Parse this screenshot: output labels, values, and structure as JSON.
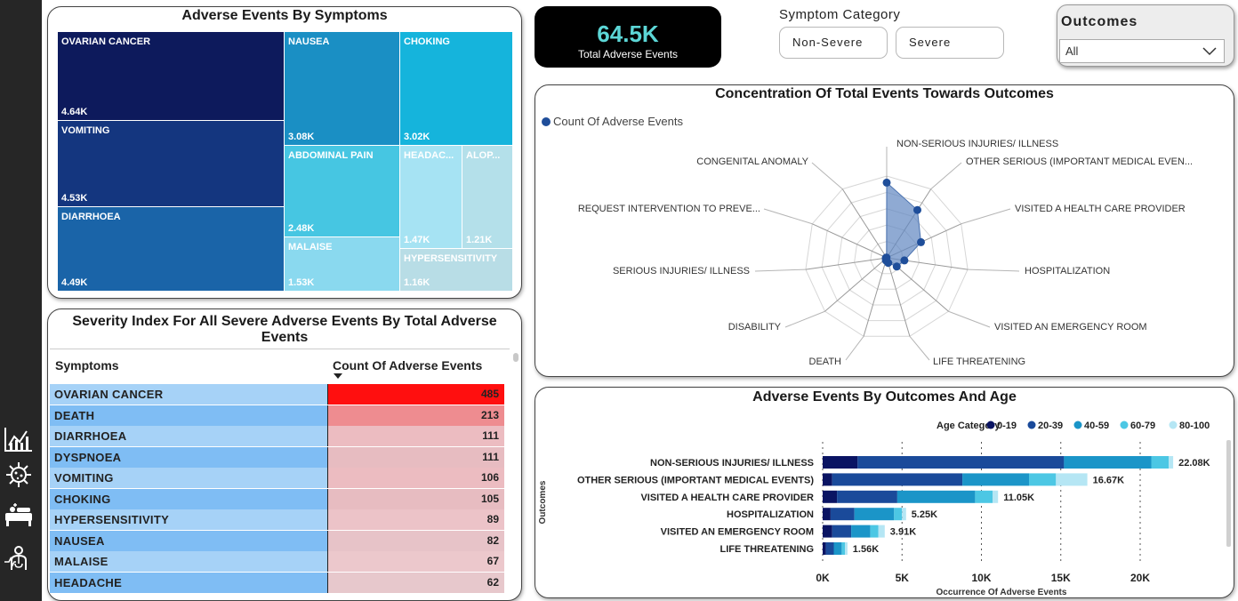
{
  "kpi": {
    "value": "64.5K",
    "label": "Total Adverse Events"
  },
  "symptom_category": {
    "title": "Symptom Category",
    "options": [
      "Non-Severe",
      "Severe"
    ]
  },
  "outcomes_slicer": {
    "title": "Outcomes",
    "selected": "All"
  },
  "treemap": {
    "title": "Adverse Events By Symptoms",
    "cells": [
      {
        "label": "OVARIAN CANCER",
        "value": "4.64K",
        "color": "#0d1a5c"
      },
      {
        "label": "VOMITING",
        "value": "4.53K",
        "color": "#14367f"
      },
      {
        "label": "DIARRHOEA",
        "value": "4.49K",
        "color": "#1a64a8"
      },
      {
        "label": "NAUSEA",
        "value": "3.08K",
        "color": "#1a8fc4"
      },
      {
        "label": "CHOKING",
        "value": "3.02K",
        "color": "#15b4dc"
      },
      {
        "label": "ABDOMINAL PAIN",
        "value": "2.48K",
        "color": "#46c6e2"
      },
      {
        "label": "MALAISE",
        "value": "1.53K",
        "color": "#8ad9ef"
      },
      {
        "label": "HEADAC...",
        "value": "1.47K",
        "color": "#a6e3f3"
      },
      {
        "label": "ALOP...",
        "value": "1.21K",
        "color": "#b4e0ea"
      },
      {
        "label": "HYPERSENSITIVITY",
        "value": "1.16K",
        "color": "#b8dde6"
      }
    ]
  },
  "table": {
    "title": "Severity Index For All Severe Adverse Events By Total Adverse Events",
    "col1": "Symptoms",
    "col2": "Count Of Adverse Events",
    "rows": [
      {
        "symptom": "OVARIAN CANCER",
        "count": "485",
        "color": "#ff0f0f",
        "row_color": "#a6d2f7"
      },
      {
        "symptom": "DEATH",
        "count": "213",
        "color": "#ee8c90",
        "row_color": "#7fbdf4"
      },
      {
        "symptom": "DIARRHOEA",
        "count": "111",
        "color": "#ecbcc1",
        "row_color": "#a6d2f7"
      },
      {
        "symptom": "DYSPNOEA",
        "count": "111",
        "color": "#e7bcc1",
        "row_color": "#7fbdf4"
      },
      {
        "symptom": "VOMITING",
        "count": "106",
        "color": "#ecbcc1",
        "row_color": "#a6d2f7"
      },
      {
        "symptom": "CHOKING",
        "count": "105",
        "color": "#e7bcc1",
        "row_color": "#7fbdf4"
      },
      {
        "symptom": "HYPERSENSITIVITY",
        "count": "89",
        "color": "#ecc3c8",
        "row_color": "#a6d2f7"
      },
      {
        "symptom": "NAUSEA",
        "count": "82",
        "color": "#e7c3c8",
        "row_color": "#7fbdf4"
      },
      {
        "symptom": "MALAISE",
        "count": "67",
        "color": "#ecc8cc",
        "row_color": "#a6d2f7"
      },
      {
        "symptom": "HEADACHE",
        "count": "62",
        "color": "#e7c8cc",
        "row_color": "#7fbdf4"
      }
    ]
  },
  "radar": {
    "title": "Concentration Of Total Events Towards Outcomes",
    "legend": "Count Of Adverse Events"
  },
  "bar": {
    "title": "Adverse Events By Outcomes And Age",
    "legend_title": "Age Category",
    "ylabel": "Outcomes"
  },
  "chart_data": [
    {
      "type": "radar",
      "title": "Concentration Of Total Events Towards Outcomes",
      "series": [
        {
          "name": "Count Of Adverse Events",
          "color": "#1f4e9a"
        }
      ],
      "categories": [
        "NON-SERIOUS INJURIES/ ILLNESS",
        "OTHER SERIOUS (IMPORTANT MEDICAL EVEN...",
        "VISITED A HEALTH CARE PROVIDER",
        "HOSPITALIZATION",
        "VISITED AN EMERGENCY ROOM",
        "LIFE THREATENING",
        "DEATH",
        "DISABILITY",
        "SERIOUS INJURIES/ ILLNESS",
        "REQUEST INTERVENTION TO PREVE...",
        "CONGENITAL ANOMALY"
      ],
      "values": [
        22080,
        16670,
        11050,
        5250,
        3910,
        1560,
        800,
        300,
        250,
        150,
        100
      ],
      "legend": "top-left"
    },
    {
      "type": "bar",
      "orientation": "horizontal",
      "stacked": true,
      "title": "Adverse Events By Outcomes And Age",
      "xlabel": "Occurrence Of Adverse Events",
      "ylabel": "Outcomes",
      "xlim": [
        0,
        22080
      ],
      "xticks": [
        "0K",
        "5K",
        "10K",
        "15K",
        "20K"
      ],
      "categories": [
        "NON-SERIOUS INJURIES/ ILLNESS",
        "OTHER SERIOUS (IMPORTANT MEDICAL EVENTS)",
        "VISITED A HEALTH CARE PROVIDER",
        "HOSPITALIZATION",
        "VISITED AN EMERGENCY ROOM",
        "LIFE THREATENING"
      ],
      "totals": [
        "22.08K",
        "16.67K",
        "11.05K",
        "5.25K",
        "3.91K",
        "1.56K"
      ],
      "legend_title": "Age Category",
      "series": [
        {
          "name": "0-19",
          "color": "#0a1463",
          "values": [
            2200,
            600,
            900,
            500,
            600,
            200
          ]
        },
        {
          "name": "20-39",
          "color": "#1a4a9a",
          "values": [
            13000,
            8200,
            3800,
            1500,
            1200,
            500
          ]
        },
        {
          "name": "40-59",
          "color": "#1b95c8",
          "values": [
            5500,
            4200,
            4900,
            2500,
            1200,
            500
          ]
        },
        {
          "name": "60-79",
          "color": "#4cc7e4",
          "values": [
            1100,
            1700,
            1100,
            500,
            500,
            200
          ]
        },
        {
          "name": "80-100",
          "color": "#b5e6f4",
          "values": [
            280,
            1970,
            350,
            250,
            410,
            160
          ]
        }
      ],
      "legend": "top-right"
    }
  ]
}
